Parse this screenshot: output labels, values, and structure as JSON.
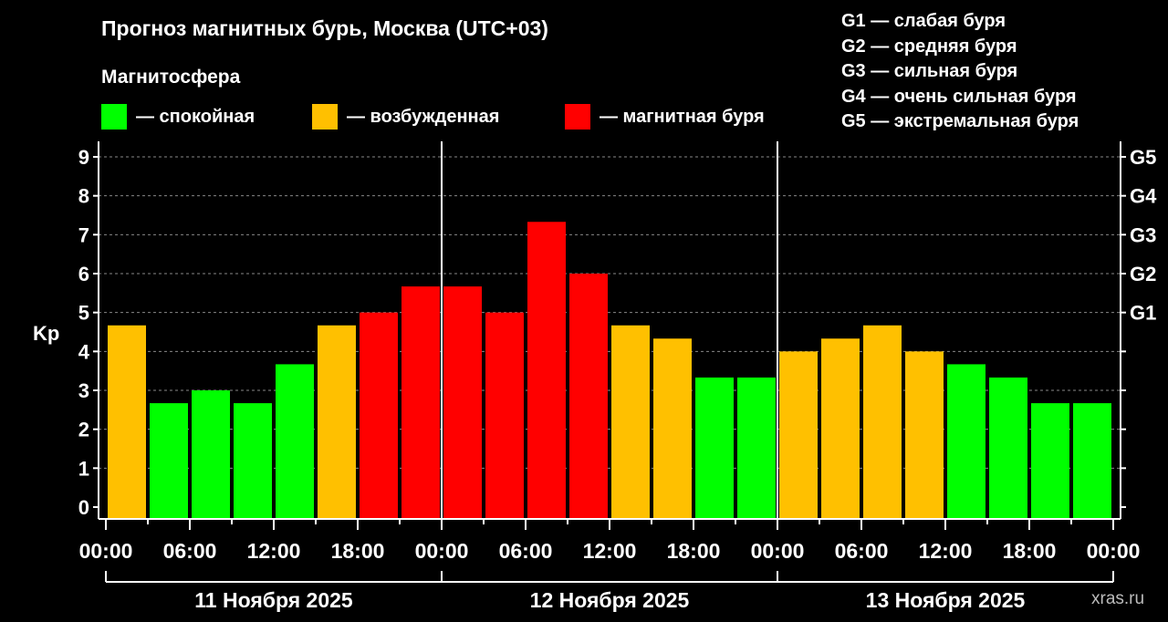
{
  "title": "Прогноз магнитных бурь, Москва (UTC+03)",
  "legend": {
    "title": "Магнитосфера",
    "items": [
      {
        "label": "— спокойная",
        "color": "#00ff00"
      },
      {
        "label": "— возбужденная",
        "color": "#ffc000"
      },
      {
        "label": "— магнитная буря",
        "color": "#ff0000"
      }
    ]
  },
  "g_scale": [
    "G1 — слабая буря",
    "G2 — средняя буря",
    "G3 — сильная буря",
    "G4 — очень сильная буря",
    "G5 — экстремальная буря"
  ],
  "watermark": "xras.ru",
  "chart_data": {
    "type": "bar",
    "ylabel": "Kp",
    "ylim": [
      0,
      9
    ],
    "yticks": [
      "0",
      "1",
      "2",
      "3",
      "4",
      "5",
      "6",
      "7",
      "8",
      "9"
    ],
    "right_ticks": [
      {
        "value": 5,
        "label": "G1"
      },
      {
        "value": 6,
        "label": "G2"
      },
      {
        "value": 7,
        "label": "G3"
      },
      {
        "value": 8,
        "label": "G4"
      },
      {
        "value": 9,
        "label": "G5"
      }
    ],
    "grid": true,
    "xtick_labels": [
      "00:00",
      "06:00",
      "12:00",
      "18:00",
      "00:00",
      "06:00",
      "12:00",
      "18:00",
      "00:00",
      "06:00",
      "12:00",
      "18:00",
      "00:00"
    ],
    "days": [
      "11 Ноября 2025",
      "12 Ноября 2025",
      "13 Ноября 2025"
    ],
    "interval_hours": 3,
    "values": [
      4.67,
      2.67,
      3.0,
      2.67,
      3.67,
      4.67,
      5.0,
      5.67,
      5.67,
      5.0,
      7.33,
      6.0,
      4.67,
      4.33,
      3.33,
      3.33,
      4.0,
      4.33,
      4.67,
      4.0,
      3.67,
      3.33,
      2.67,
      2.67
    ],
    "colors": [
      "#ffc000",
      "#00ff00",
      "#00ff00",
      "#00ff00",
      "#00ff00",
      "#ffc000",
      "#ff0000",
      "#ff0000",
      "#ff0000",
      "#ff0000",
      "#ff0000",
      "#ff0000",
      "#ffc000",
      "#ffc000",
      "#00ff00",
      "#00ff00",
      "#ffc000",
      "#ffc000",
      "#ffc000",
      "#ffc000",
      "#00ff00",
      "#00ff00",
      "#00ff00",
      "#00ff00"
    ]
  }
}
